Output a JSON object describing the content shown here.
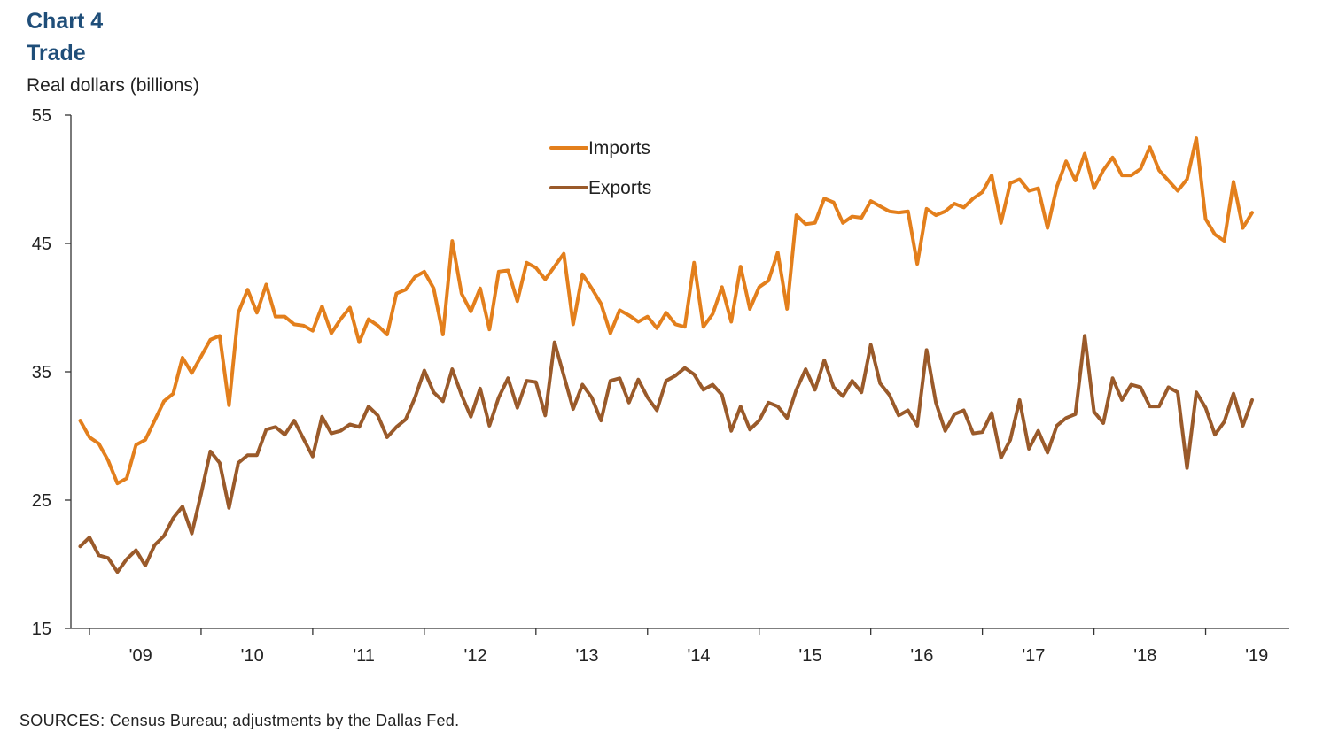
{
  "header": {
    "chart_number": "Chart 4",
    "title": "Trade",
    "unit_label": "Real dollars (billions)"
  },
  "footer": {
    "source": "SOURCES: Census Bureau; adjustments by the Dallas Fed."
  },
  "colors": {
    "imports": "#e37f1c",
    "exports": "#9a5a2a",
    "title": "#1f4e79",
    "axis": "#333333"
  },
  "chart_data": {
    "type": "line",
    "title": "Trade",
    "ylabel": "Real dollars (billions)",
    "ylim": [
      15,
      55
    ],
    "yticks": [
      15,
      25,
      35,
      45,
      55
    ],
    "xlim": [
      "2008-11",
      "2019-10"
    ],
    "x_tick_labels": [
      "'09",
      "'10",
      "'11",
      "'12",
      "'13",
      "'14",
      "'15",
      "'16",
      "'17",
      "'18",
      "'19"
    ],
    "x_start": "2008-12",
    "x_frequency": "monthly",
    "grid": false,
    "legend_position": "top-center",
    "series": [
      {
        "name": "Imports",
        "values": [
          31.2,
          29.9,
          29.4,
          28.1,
          26.3,
          26.7,
          29.3,
          29.7,
          31.2,
          32.7,
          33.3,
          36.1,
          34.9,
          36.2,
          37.5,
          37.8,
          32.4,
          39.6,
          41.4,
          39.6,
          41.8,
          39.3,
          39.3,
          38.7,
          38.6,
          38.2,
          40.1,
          38.0,
          39.1,
          40.0,
          37.3,
          39.1,
          38.6,
          37.9,
          41.1,
          41.4,
          42.4,
          42.8,
          41.5,
          37.9,
          45.2,
          41.1,
          39.7,
          41.5,
          38.3,
          42.8,
          42.9,
          40.5,
          43.5,
          43.1,
          42.2,
          43.2,
          44.2,
          38.7,
          42.6,
          41.5,
          40.3,
          38.0,
          39.8,
          39.4,
          38.9,
          39.3,
          38.4,
          39.6,
          38.7,
          38.5,
          43.5,
          38.5,
          39.5,
          41.6,
          38.9,
          43.2,
          39.9,
          41.6,
          42.1,
          44.3,
          39.9,
          47.2,
          46.5,
          46.6,
          48.5,
          48.2,
          46.6,
          47.1,
          47.0,
          48.3,
          47.9,
          47.5,
          47.4,
          47.5,
          43.4,
          47.7,
          47.2,
          47.5,
          48.1,
          47.8,
          48.5,
          49.0,
          50.3,
          46.6,
          49.7,
          50.0,
          49.1,
          49.3,
          46.2,
          49.4,
          51.4,
          49.9,
          52.0,
          49.3,
          50.7,
          51.7,
          50.3,
          50.3,
          50.8,
          52.5,
          50.7,
          49.9,
          49.1,
          50.0,
          53.2,
          46.9,
          45.7,
          45.2,
          49.8,
          46.2,
          47.4
        ]
      },
      {
        "name": "Exports",
        "values": [
          21.4,
          22.1,
          20.7,
          20.5,
          19.4,
          20.4,
          21.1,
          19.9,
          21.5,
          22.2,
          23.6,
          24.5,
          22.4,
          25.5,
          28.8,
          27.9,
          24.4,
          27.9,
          28.5,
          28.5,
          30.5,
          30.7,
          30.1,
          31.2,
          29.8,
          28.4,
          31.5,
          30.2,
          30.4,
          30.9,
          30.7,
          32.3,
          31.6,
          29.9,
          30.7,
          31.3,
          33.0,
          35.1,
          33.4,
          32.7,
          35.2,
          33.2,
          31.5,
          33.7,
          30.8,
          33.0,
          34.5,
          32.2,
          34.3,
          34.2,
          31.6,
          37.3,
          34.7,
          32.1,
          34.0,
          33.0,
          31.2,
          34.3,
          34.5,
          32.6,
          34.4,
          33.0,
          32.0,
          34.3,
          34.7,
          35.3,
          34.8,
          33.6,
          34.0,
          33.2,
          30.4,
          32.3,
          30.5,
          31.2,
          32.6,
          32.3,
          31.4,
          33.6,
          35.2,
          33.6,
          35.9,
          33.8,
          33.1,
          34.3,
          33.4,
          37.1,
          34.1,
          33.2,
          31.6,
          32.0,
          30.8,
          36.7,
          32.6,
          30.4,
          31.7,
          32.0,
          30.2,
          30.3,
          31.8,
          28.3,
          29.7,
          32.8,
          29.0,
          30.4,
          28.7,
          30.8,
          31.4,
          31.7,
          37.8,
          31.9,
          31.0,
          34.5,
          32.8,
          34.0,
          33.8,
          32.3,
          32.3,
          33.8,
          33.4,
          27.5,
          33.4,
          32.2,
          30.1,
          31.1,
          33.3,
          30.8,
          32.8
        ]
      }
    ]
  }
}
